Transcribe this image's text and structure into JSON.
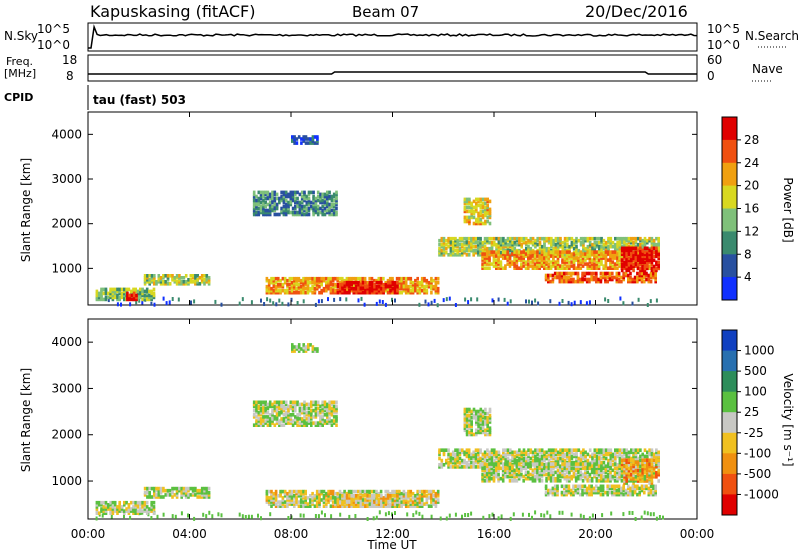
{
  "header": {
    "site": "Kapuskasing (fitACF)",
    "beam": "Beam 07",
    "date": "20/Dec/2016"
  },
  "panels": {
    "nsky_label": "N.Sky",
    "nsky_ticks": [
      "10^5",
      "10^0"
    ],
    "nsearch_label": "N.Search",
    "nsearch_ticks": [
      "10^5",
      "10^0"
    ],
    "freq_label": "Freq.",
    "freq_unit": "[MHz]",
    "freq_ticks": [
      "18",
      "8"
    ],
    "nave_label": "Nave",
    "nave_ticks": [
      "60",
      "0"
    ],
    "cpid_label": "CPID",
    "cpid_value": "tau (fast) 503"
  },
  "chart_data": [
    {
      "type": "heatmap",
      "name": "power",
      "ylabel": "Slant Range [km]",
      "xlabel": "Time UT",
      "x_ticks": [
        "00:00",
        "04:00",
        "08:00",
        "12:00",
        "16:00",
        "20:00",
        "00:00"
      ],
      "xlim_hours": [
        0,
        24
      ],
      "y_ticks": [
        1000,
        2000,
        3000,
        4000
      ],
      "ylim_km": [
        180,
        4500
      ],
      "colorbar": {
        "label": "Power [dB]",
        "ticks": [
          "4",
          "8",
          "12",
          "16",
          "20",
          "24",
          "28"
        ],
        "colors": [
          "#1030ff",
          "#2850a0",
          "#3a8a6e",
          "#7fc07a",
          "#d8d820",
          "#f0a010",
          "#f05010",
          "#e00000"
        ]
      },
      "echo_regions": [
        {
          "t0": 0.3,
          "t1": 2.6,
          "r0": 300,
          "r1": 550,
          "level": 0.45
        },
        {
          "t0": 1.5,
          "t1": 2.0,
          "r0": 300,
          "r1": 450,
          "level": 0.95
        },
        {
          "t0": 2.2,
          "t1": 4.8,
          "r0": 650,
          "r1": 850,
          "level": 0.5
        },
        {
          "t0": 6.5,
          "t1": 9.8,
          "r0": 2200,
          "r1": 2700,
          "level": 0.3
        },
        {
          "t0": 8.0,
          "t1": 9.0,
          "r0": 3800,
          "r1": 3950,
          "level": 0.2
        },
        {
          "t0": 7.0,
          "t1": 13.8,
          "r0": 450,
          "r1": 800,
          "level": 0.7
        },
        {
          "t0": 9.8,
          "t1": 12.2,
          "r0": 450,
          "r1": 700,
          "level": 0.95
        },
        {
          "t0": 14.8,
          "t1": 15.8,
          "r0": 2000,
          "r1": 2550,
          "level": 0.6
        },
        {
          "t0": 13.8,
          "t1": 22.5,
          "r0": 1300,
          "r1": 1700,
          "level": 0.5
        },
        {
          "t0": 15.5,
          "t1": 22.2,
          "r0": 1000,
          "r1": 1400,
          "level": 0.7
        },
        {
          "t0": 18.0,
          "t1": 22.4,
          "r0": 700,
          "r1": 900,
          "level": 0.8
        },
        {
          "t0": 21.0,
          "t1": 22.5,
          "r0": 950,
          "r1": 1450,
          "level": 0.95
        }
      ]
    },
    {
      "type": "heatmap",
      "name": "velocity",
      "ylabel": "Slant Range [km]",
      "xlabel": "Time UT",
      "x_ticks": [
        "00:00",
        "04:00",
        "08:00",
        "12:00",
        "16:00",
        "20:00",
        "00:00"
      ],
      "xlim_hours": [
        0,
        24
      ],
      "y_ticks": [
        1000,
        2000,
        3000,
        4000
      ],
      "ylim_km": [
        180,
        4500
      ],
      "colorbar": {
        "label": "Velocity [m s⁻¹]",
        "ticks": [
          "1000",
          "500",
          "100",
          "25",
          "-25",
          "-100",
          "-500",
          "-1000"
        ],
        "colors": [
          "#1040c0",
          "#2870b0",
          "#2d8d5a",
          "#5ac040",
          "#c8c8c4",
          "#f0c020",
          "#f09010",
          "#f05010",
          "#e00000"
        ]
      },
      "echo_regions": [
        {
          "t0": 0.3,
          "t1": 2.6,
          "r0": 300,
          "r1": 550,
          "level": 0.5
        },
        {
          "t0": 2.2,
          "t1": 4.8,
          "r0": 650,
          "r1": 850,
          "level": 0.5
        },
        {
          "t0": 6.5,
          "t1": 9.8,
          "r0": 2200,
          "r1": 2700,
          "level": 0.5
        },
        {
          "t0": 8.0,
          "t1": 9.0,
          "r0": 3800,
          "r1": 3950,
          "level": 0.5
        },
        {
          "t0": 7.0,
          "t1": 13.8,
          "r0": 450,
          "r1": 800,
          "level": 0.55
        },
        {
          "t0": 9.8,
          "t1": 12.2,
          "r0": 450,
          "r1": 700,
          "level": 0.62
        },
        {
          "t0": 14.8,
          "t1": 15.8,
          "r0": 2000,
          "r1": 2550,
          "level": 0.5
        },
        {
          "t0": 13.8,
          "t1": 22.5,
          "r0": 1300,
          "r1": 1700,
          "level": 0.5
        },
        {
          "t0": 15.5,
          "t1": 22.2,
          "r0": 1000,
          "r1": 1400,
          "level": 0.5
        },
        {
          "t0": 18.0,
          "t1": 22.4,
          "r0": 700,
          "r1": 900,
          "level": 0.5
        },
        {
          "t0": 21.0,
          "t1": 22.5,
          "r0": 950,
          "r1": 1450,
          "level": 0.7
        }
      ]
    }
  ]
}
